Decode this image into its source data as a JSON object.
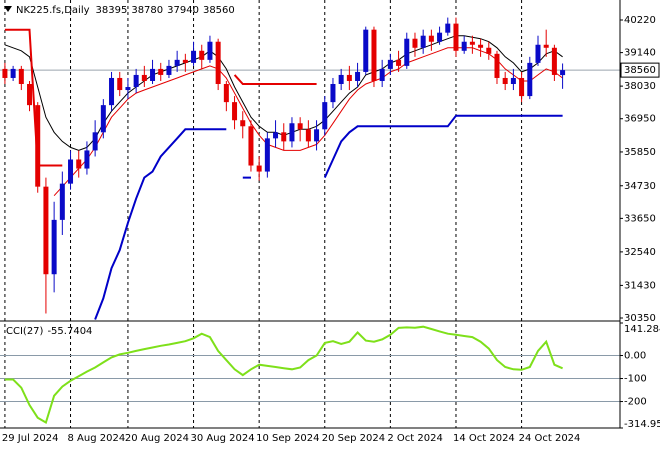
{
  "chart_data": {
    "type": "candlestick",
    "symbol": "NK225.fs,Daily",
    "xlim": [
      -0.6,
      75
    ],
    "xticks": [
      {
        "value": 0,
        "label": "29 Jul 2024"
      },
      {
        "value": 8,
        "label": "8 Aug 2024"
      },
      {
        "value": 15,
        "label": "20 Aug 2024"
      },
      {
        "value": 23,
        "label": "30 Aug 2024"
      },
      {
        "value": 31,
        "label": "10 Sep 2024"
      },
      {
        "value": 39,
        "label": "20 Sep 2024"
      },
      {
        "value": 47,
        "label": "2 Oct 2024"
      },
      {
        "value": 55,
        "label": "14 Oct 2024"
      },
      {
        "value": 63,
        "label": "24 Oct 2024"
      }
    ],
    "ylim": [
      30284,
      40816
    ],
    "yticks": [
      40220,
      39140,
      38030,
      36950,
      35850,
      34730,
      33650,
      32540,
      31430,
      30350
    ],
    "up_color": "#0a0ac8",
    "down_color": "#e40000",
    "open": [
      38600,
      38300,
      38600,
      38100,
      37400,
      34700,
      31800,
      33600,
      34800,
      35600,
      35300,
      35900,
      36500,
      37400,
      38300,
      37900,
      38000,
      38400,
      38200,
      38600,
      38400,
      38700,
      38900,
      38800,
      39200,
      38900,
      39500,
      38100,
      37500,
      36900,
      36700,
      35400,
      35200,
      36300,
      36500,
      36200,
      36800,
      36600,
      36200,
      36600,
      37500,
      38100,
      38400,
      38200,
      38500,
      39900,
      38200,
      38600,
      38900,
      38700,
      39600,
      39300,
      39700,
      39500,
      39800,
      40100,
      39200,
      39500,
      39400,
      39300,
      39100,
      38300,
      38100,
      38300,
      37700,
      38800,
      39400,
      39300,
      38395
    ],
    "high": [
      38800,
      38700,
      38700,
      38200,
      37500,
      35000,
      34200,
      35200,
      35900,
      35900,
      36200,
      36900,
      37600,
      38500,
      38500,
      38300,
      38600,
      38700,
      38900,
      38800,
      38900,
      39200,
      39100,
      39500,
      39400,
      39700,
      39600,
      38200,
      37700,
      37200,
      36900,
      35700,
      36500,
      36900,
      36800,
      37000,
      37000,
      36900,
      36900,
      37700,
      38300,
      38600,
      38700,
      38800,
      40000,
      40000,
      38900,
      39100,
      39200,
      39800,
      39800,
      39900,
      39900,
      40000,
      40300,
      40300,
      39700,
      39700,
      39600,
      39500,
      39200,
      38500,
      38600,
      38500,
      39000,
      39700,
      39900,
      39400,
      38780
    ],
    "low": [
      38100,
      38200,
      37900,
      37200,
      34500,
      30500,
      31200,
      33100,
      34600,
      35000,
      35100,
      35700,
      36300,
      37200,
      37700,
      37600,
      37800,
      38000,
      38100,
      38200,
      38300,
      38500,
      38500,
      38700,
      38600,
      38800,
      37900,
      37200,
      36600,
      36300,
      35200,
      34900,
      35000,
      36000,
      35900,
      36000,
      36200,
      36000,
      35900,
      36400,
      37300,
      37900,
      37900,
      38000,
      38400,
      38000,
      38000,
      38400,
      38500,
      38600,
      39000,
      39100,
      39200,
      39400,
      39700,
      39000,
      39100,
      39100,
      39000,
      38900,
      38100,
      37900,
      37900,
      37500,
      37600,
      38700,
      39000,
      38200,
      37940
    ],
    "close": [
      38300,
      38600,
      38100,
      37400,
      34700,
      31800,
      33600,
      34800,
      35600,
      35300,
      35900,
      36500,
      37400,
      38300,
      37900,
      38000,
      38400,
      38200,
      38600,
      38400,
      38700,
      38900,
      38800,
      39200,
      38900,
      39500,
      38100,
      37500,
      36900,
      36700,
      35400,
      35200,
      36300,
      36500,
      36200,
      36800,
      36600,
      36200,
      36600,
      37500,
      38100,
      38400,
      38200,
      38500,
      39900,
      38200,
      38600,
      38900,
      38700,
      39600,
      39300,
      39700,
      39500,
      39800,
      40100,
      39200,
      39500,
      39400,
      39300,
      39100,
      38300,
      38100,
      38300,
      37700,
      38800,
      39400,
      39300,
      38400,
      38560
    ],
    "lines": [
      {
        "color": "#000000",
        "values": [
          39400,
          39300,
          39200,
          39000,
          38000,
          37000,
          36500,
          36200,
          36000,
          35900,
          36000,
          36300,
          36800,
          37200,
          37500,
          37800,
          38000,
          38200,
          38400,
          38500,
          38600,
          38700,
          38800,
          38900,
          39000,
          39200,
          39000,
          38600,
          38000,
          37500,
          37000,
          36700,
          36500,
          36500,
          36400,
          36500,
          36600,
          36600,
          36700,
          36900,
          37200,
          37500,
          37800,
          38000,
          38400,
          38500,
          38600,
          38800,
          38900,
          39100,
          39200,
          39300,
          39400,
          39500,
          39600,
          39700,
          39700,
          39650,
          39600,
          39500,
          39300,
          39000,
          38800,
          38500,
          38600,
          38800,
          39100,
          39200,
          39000
        ]
      },
      {
        "color": "#e40000",
        "values": [
          null,
          null,
          null,
          null,
          null,
          null,
          34400,
          34700,
          35000,
          35300,
          35600,
          36000,
          36500,
          37000,
          37300,
          37600,
          37800,
          37900,
          38000,
          38100,
          38200,
          38300,
          38400,
          38500,
          38600,
          38700,
          38600,
          38300,
          37800,
          37300,
          36800,
          36400,
          36100,
          36000,
          35900,
          35900,
          35900,
          36000,
          36100,
          36400,
          36800,
          37200,
          37600,
          37900,
          38100,
          38200,
          38300,
          38500,
          38600,
          38800,
          38900,
          39000,
          39100,
          39200,
          39300,
          39300,
          39300,
          39300,
          39200,
          39100,
          38900,
          38600,
          38400,
          38200,
          38200,
          38400,
          38600,
          38500,
          38300
        ]
      },
      {
        "color": "#e40000",
        "width": 2,
        "values": [
          39900,
          39900,
          39900,
          39900,
          35400,
          35400,
          35400,
          35400,
          null,
          null,
          null,
          null,
          null,
          null,
          null,
          null,
          null,
          null,
          null,
          null,
          null,
          null,
          null,
          null,
          null,
          null,
          null,
          null,
          38400,
          38100,
          38100,
          38100,
          38100,
          38100,
          38100,
          38100,
          38100,
          38100,
          38100,
          null,
          null,
          null,
          null,
          null,
          null,
          null,
          null,
          null,
          null,
          null,
          null,
          null,
          null,
          null,
          null,
          null,
          null,
          null,
          null,
          null,
          null,
          null,
          null,
          null,
          null,
          null,
          null,
          null,
          null
        ]
      },
      {
        "color": "#0000c8",
        "width": 2,
        "values": [
          null,
          null,
          null,
          null,
          null,
          null,
          null,
          null,
          null,
          null,
          null,
          30300,
          31000,
          32000,
          32600,
          33500,
          34300,
          35000,
          35200,
          35700,
          36000,
          36300,
          36600,
          36600,
          36600,
          36600,
          36600,
          36600,
          null,
          35000,
          35000,
          null,
          null,
          null,
          null,
          null,
          null,
          null,
          null,
          35000,
          35600,
          36200,
          36500,
          36700,
          36700,
          36700,
          36700,
          36700,
          36700,
          36700,
          36700,
          36700,
          36700,
          36700,
          36700,
          37050,
          37050,
          37050,
          37050,
          37050,
          37050,
          37050,
          37050,
          37050,
          37050,
          37050,
          37050,
          37050,
          37050
        ]
      }
    ],
    "cci": {
      "title": "CCI(27)",
      "color": "#7ee01a",
      "ylim": [
        -314.953,
        141.2847
      ],
      "yticks": [
        141.2847,
        {
          "value": 0,
          "label": "0.00"
        },
        -100,
        -200,
        {
          "value": -314.953,
          "label": "-314.9530"
        }
      ],
      "values": [
        -104,
        -104,
        -140,
        -215,
        -270,
        -291,
        -175,
        -135,
        -110,
        -90,
        -70,
        -52,
        -30,
        -8,
        5,
        12,
        20,
        28,
        35,
        42,
        48,
        55,
        62,
        75,
        95,
        80,
        20,
        -20,
        -60,
        -85,
        -60,
        -40,
        -45,
        -50,
        -55,
        -60,
        -52,
        -20,
        0,
        55,
        62,
        50,
        60,
        100,
        65,
        60,
        70,
        90,
        120,
        122,
        121,
        125,
        115,
        105,
        95,
        90,
        85,
        80,
        60,
        30,
        -20,
        -50,
        -60,
        -62,
        -50,
        20,
        60,
        -40,
        -55.7404
      ]
    }
  }
}
